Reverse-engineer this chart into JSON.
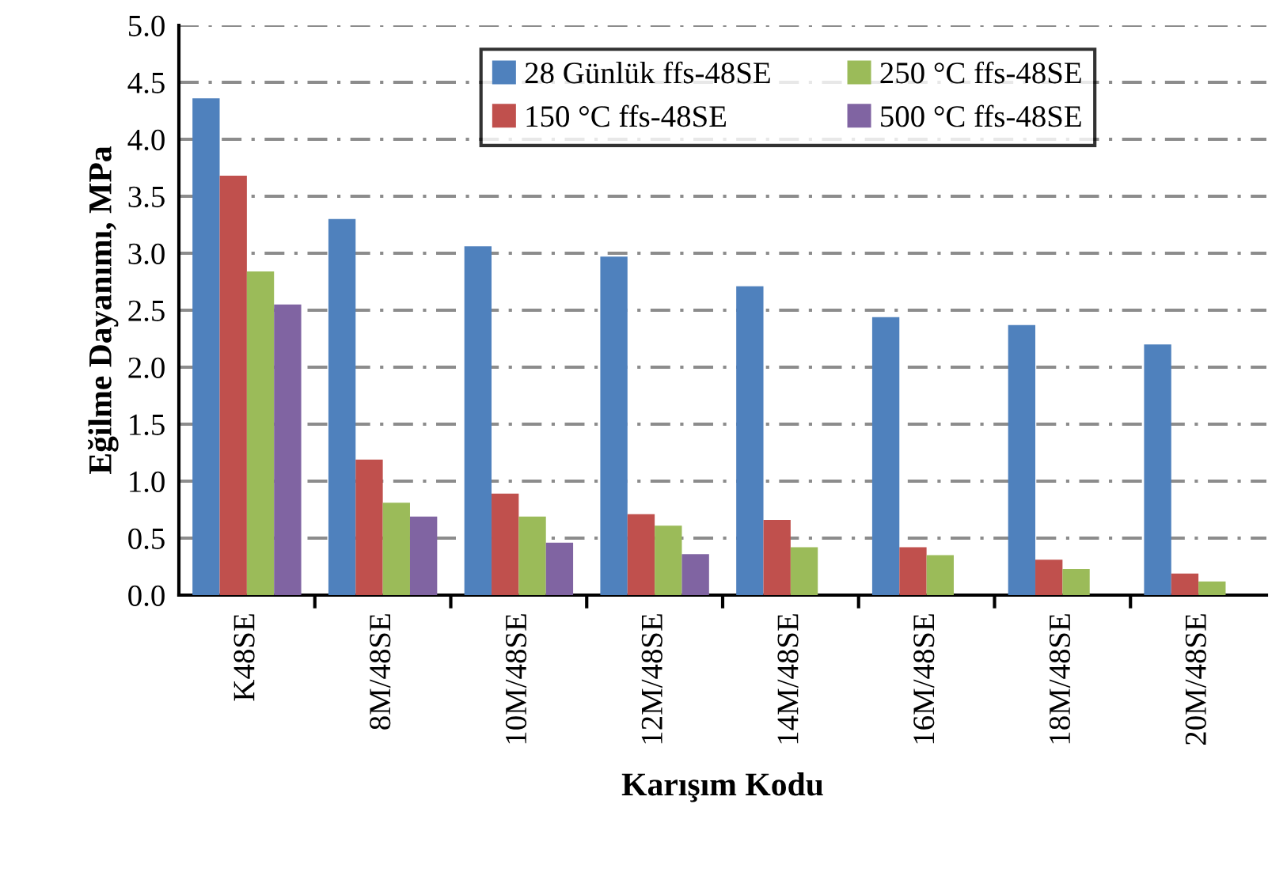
{
  "chart_data": {
    "type": "bar",
    "xlabel": "Karışım Kodu",
    "ylabel": "Eğilme Dayanımı, MPa",
    "categories": [
      "K48SE",
      "8M/48SE",
      "10M/48SE",
      "12M/48SE",
      "14M/48SE",
      "16M/48SE",
      "18M/48SE",
      "20M/48SE"
    ],
    "series": [
      {
        "name": "28 Günlük ffs-48SE",
        "color": "#4f81bd",
        "values": [
          4.36,
          3.3,
          3.06,
          2.97,
          2.71,
          2.44,
          2.37,
          2.2
        ]
      },
      {
        "name": "150 °C ffs-48SE",
        "color": "#c0504d",
        "values": [
          3.68,
          1.19,
          0.89,
          0.71,
          0.66,
          0.42,
          0.31,
          0.19
        ]
      },
      {
        "name": "250 °C ffs-48SE",
        "color": "#9bbb59",
        "values": [
          2.84,
          0.81,
          0.69,
          0.61,
          0.42,
          0.35,
          0.23,
          0.12
        ]
      },
      {
        "name": "500 °C ffs-48SE",
        "color": "#8064a2",
        "values": [
          2.55,
          0.69,
          0.46,
          0.36,
          null,
          null,
          null,
          null
        ]
      }
    ],
    "ylim": [
      0,
      5.0
    ],
    "yticks": [
      {
        "value": 0,
        "label": "0.0"
      },
      {
        "value": 0.5,
        "label": "0.5"
      },
      {
        "value": 1,
        "label": "1.0"
      },
      {
        "value": 1.5,
        "label": "1.5"
      },
      {
        "value": 2,
        "label": "2.0"
      },
      {
        "value": 2.5,
        "label": "2.5"
      },
      {
        "value": 3,
        "label": "3.0"
      },
      {
        "value": 3.5,
        "label": "3.5"
      },
      {
        "value": 4,
        "label": "4.0"
      },
      {
        "value": 4.5,
        "label": "4.5"
      },
      {
        "value": 5,
        "label": "5.0"
      }
    ],
    "grid": "y",
    "legend": "top"
  }
}
